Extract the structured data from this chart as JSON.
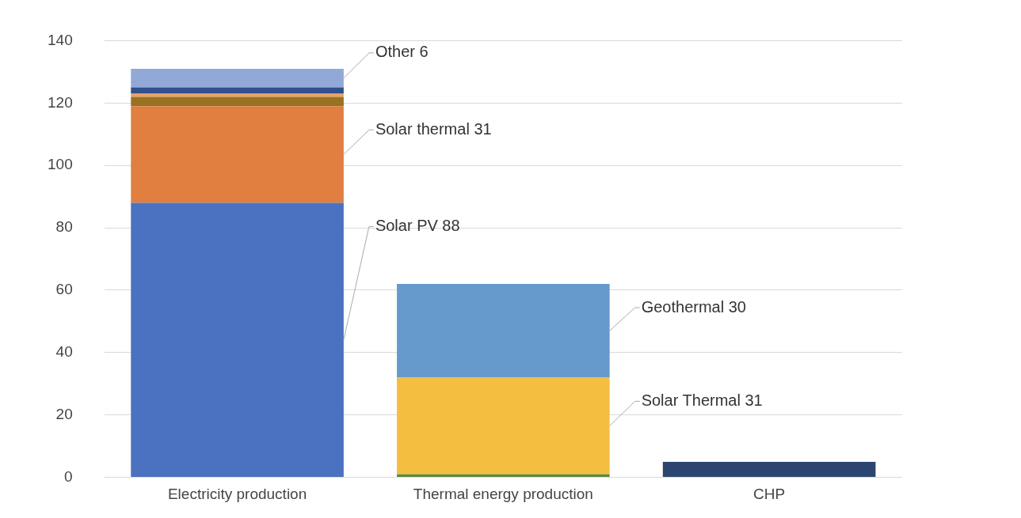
{
  "chart_data": {
    "type": "bar",
    "stacked": true,
    "categories": [
      "Electricity production",
      "Thermal energy production",
      "CHP"
    ],
    "series": [
      {
        "color": "#4a72c0",
        "values": [
          88,
          null,
          null
        ],
        "value_labels": [
          "Solar PV 88",
          null,
          null
        ]
      },
      {
        "color": "#e07f3f",
        "values": [
          31,
          null,
          null
        ],
        "value_labels": [
          "Solar thermal 31",
          null,
          null
        ]
      },
      {
        "color": "#967221",
        "values": [
          3,
          null,
          null
        ]
      },
      {
        "color": "#f0a060",
        "values": [
          1,
          null,
          null
        ]
      },
      {
        "color": "#2f4f8f",
        "values": [
          2,
          null,
          null
        ]
      },
      {
        "color": "#92a9d8",
        "values": [
          6,
          null,
          null
        ],
        "value_labels": [
          "Other 6",
          null,
          null
        ]
      },
      {
        "color": "#5a8a3a",
        "values": [
          null,
          1,
          null
        ]
      },
      {
        "color": "#f4be41",
        "values": [
          null,
          31,
          null
        ],
        "value_labels": [
          null,
          "Solar Thermal 31",
          null
        ]
      },
      {
        "color": "#6699cc",
        "values": [
          null,
          30,
          null
        ],
        "value_labels": [
          null,
          "Geothermal 30",
          null
        ]
      },
      {
        "color": "#2c4570",
        "values": [
          null,
          null,
          5
        ]
      }
    ],
    "ylim": [
      0,
      140
    ],
    "yticks": [
      0,
      20,
      40,
      60,
      80,
      100,
      120,
      140
    ],
    "grid": "y",
    "legend": false
  }
}
